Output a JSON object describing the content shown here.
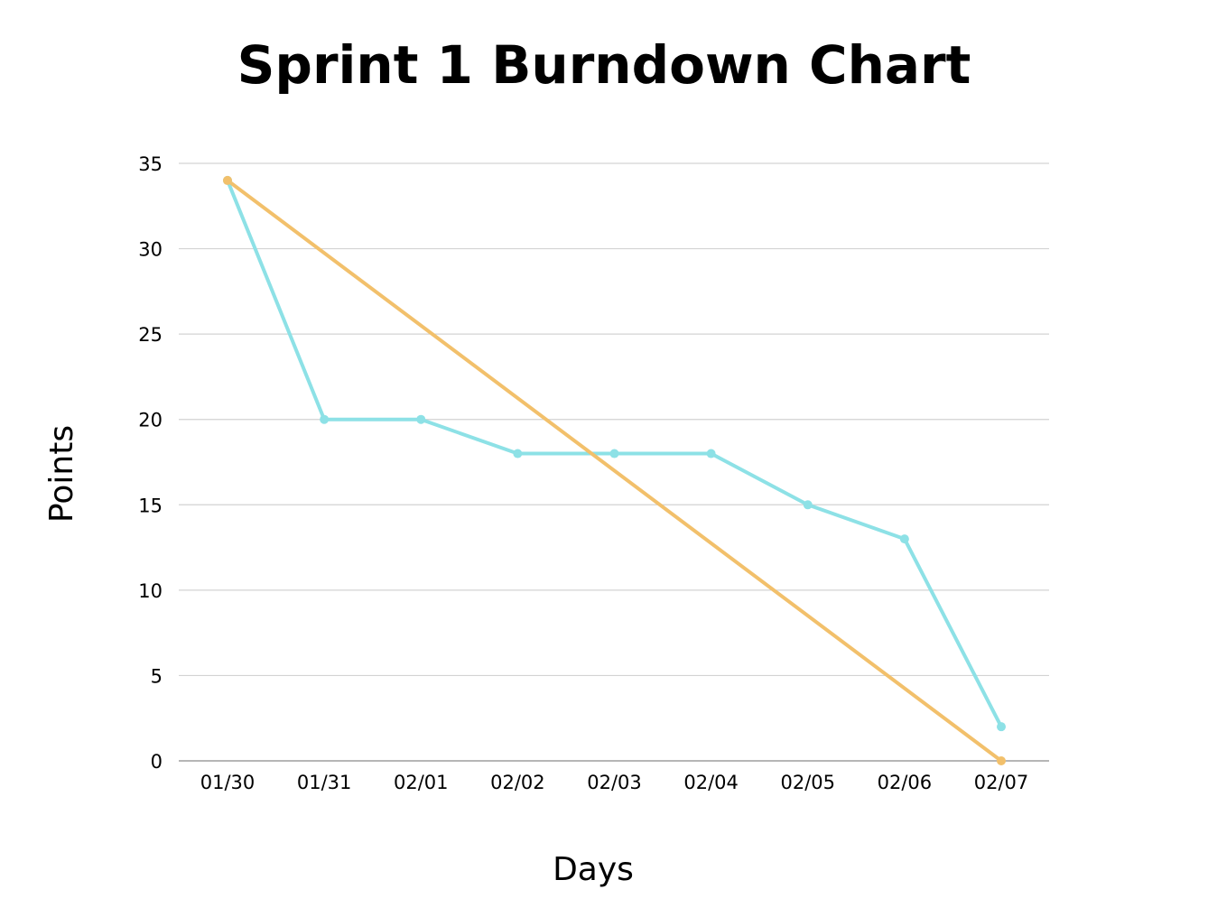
{
  "chart_data": {
    "type": "line",
    "title": "Sprint 1 Burndown Chart",
    "xlabel": "Days",
    "ylabel": "Points",
    "categories": [
      "01/30",
      "01/31",
      "02/01",
      "02/02",
      "02/03",
      "02/04",
      "02/05",
      "02/06",
      "02/07"
    ],
    "ylim": [
      0,
      35
    ],
    "yticks": [
      0,
      5,
      10,
      15,
      20,
      25,
      30,
      35
    ],
    "grid": true,
    "legend": "none",
    "series": [
      {
        "values": [
          34,
          20,
          20,
          18,
          18,
          18,
          15,
          13,
          2
        ],
        "color": "#8de1e6",
        "markers": "all"
      },
      {
        "values": [
          34,
          null,
          null,
          null,
          null,
          null,
          null,
          null,
          0
        ],
        "color": "#f2c06b",
        "markers": "endpoints",
        "interpolate": true
      }
    ]
  }
}
